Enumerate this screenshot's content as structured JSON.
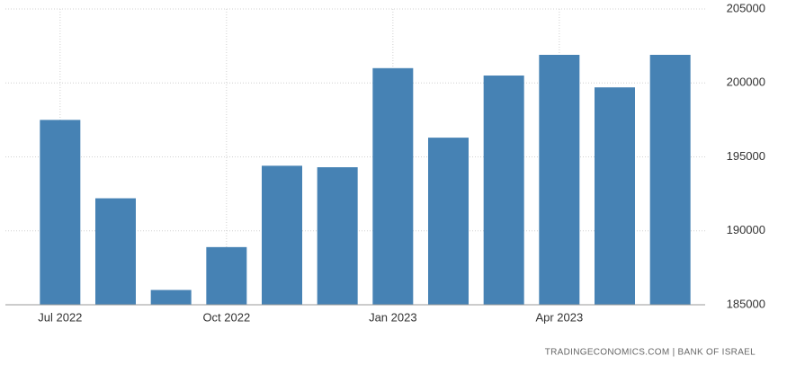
{
  "chart_data": {
    "type": "bar",
    "categories": [
      "Jul 2022",
      null,
      null,
      "Oct 2022",
      null,
      null,
      "Jan 2023",
      null,
      null,
      "Apr 2023",
      null,
      null
    ],
    "values": [
      197500,
      192200,
      186000,
      188900,
      194400,
      194300,
      201000,
      196300,
      200500,
      201900,
      199700,
      201900
    ],
    "color": "#4682b4",
    "ylim": [
      185000,
      205000
    ],
    "yticks": [
      185000,
      190000,
      195000,
      200000,
      205000
    ],
    "grid": true,
    "source": "TRADINGECONOMICS.COM | BANK OF ISRAEL"
  }
}
